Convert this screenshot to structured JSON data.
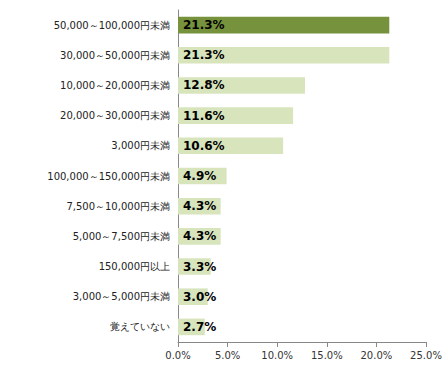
{
  "chart_data": {
    "type": "bar",
    "orientation": "horizontal",
    "categories": [
      "50,000～100,000円未満",
      "30,000～50,000円未満",
      "10,000～20,000円未満",
      "20,000～30,000円未満",
      "3,000円未満",
      "100,000～150,000円未満",
      "7,500～10,000円未満",
      "5,000～7,500円未満",
      "150,000円以上",
      "3,000～5,000円未満",
      "覚えていない"
    ],
    "values": [
      21.3,
      21.3,
      12.8,
      11.6,
      10.6,
      4.9,
      4.3,
      4.3,
      3.3,
      3.0,
      2.7
    ],
    "value_labels": [
      "21.3%",
      "21.3%",
      "12.8%",
      "11.6%",
      "10.6%",
      "4.9%",
      "4.3%",
      "4.3%",
      "3.3%",
      "3.0%",
      "2.7%"
    ],
    "colors": [
      "#76923c",
      "#d7e4bc",
      "#d7e4bc",
      "#d7e4bc",
      "#d7e4bc",
      "#d7e4bc",
      "#d7e4bc",
      "#d7e4bc",
      "#d7e4bc",
      "#d7e4bc",
      "#d7e4bc"
    ],
    "xlim": [
      0,
      25
    ],
    "xticks": [
      {
        "value": 0,
        "label": "0.0%"
      },
      {
        "value": 5,
        "label": "5.0%"
      },
      {
        "value": 10,
        "label": "10.0%"
      },
      {
        "value": 15,
        "label": "15.0%"
      },
      {
        "value": 20,
        "label": "20.0%"
      },
      {
        "value": 25,
        "label": "25.0%"
      }
    ],
    "grid": false,
    "data_labels": true
  }
}
